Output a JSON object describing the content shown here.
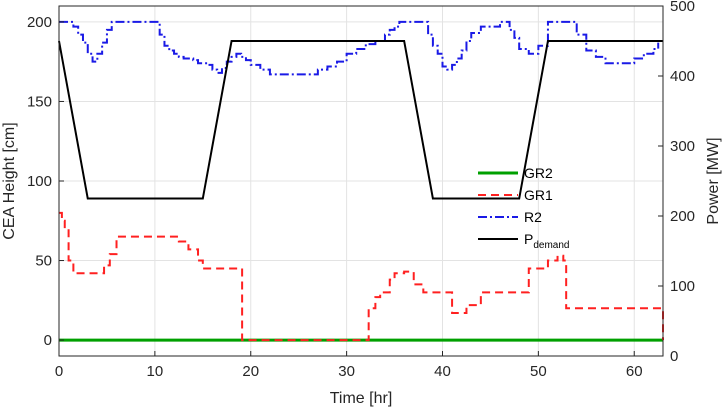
{
  "chart_data": {
    "type": "line",
    "xlabel": "Time [hr]",
    "ylabel_left": "CEA Height [cm]",
    "ylabel_right": "Power [MW]",
    "xlim": [
      0,
      63
    ],
    "ylim_left": [
      -10,
      210
    ],
    "ylim_right": [
      0,
      500
    ],
    "xticks": [
      0,
      10,
      20,
      30,
      40,
      50,
      60
    ],
    "yticks_left": [
      0,
      50,
      100,
      150,
      200
    ],
    "yticks_right": [
      0,
      100,
      200,
      300,
      400,
      500
    ],
    "grid": true,
    "legend_position": "right",
    "series": [
      {
        "name": "GR2",
        "axis": "left",
        "color": "#00a000",
        "style": "solid",
        "step": true,
        "x": [
          0,
          63
        ],
        "y": [
          0,
          0
        ]
      },
      {
        "name": "GR1",
        "axis": "left",
        "color": "#ff2020",
        "style": "dashed",
        "step": true,
        "x": [
          0,
          0.3,
          0.6,
          1,
          1.5,
          4,
          4.7,
          5.3,
          6,
          11.5,
          12.5,
          13.5,
          14.5,
          15,
          18.7,
          19.1,
          31.8,
          32.3,
          33,
          33.5,
          34.5,
          35,
          36,
          37,
          38,
          41,
          42,
          42.5,
          44,
          49,
          50,
          51,
          52,
          52.6,
          52.9,
          63
        ],
        "y": [
          80,
          75,
          70,
          50,
          42,
          42,
          47,
          54,
          65,
          65,
          62,
          57,
          50,
          45,
          45,
          0,
          0,
          20,
          27,
          30,
          38,
          42,
          43,
          35,
          30,
          17,
          17,
          22,
          30,
          45,
          45,
          50,
          53,
          50,
          20,
          0
        ]
      },
      {
        "name": "R2",
        "axis": "left",
        "color": "#1a1ae6",
        "style": "dashdot",
        "step": true,
        "x": [
          0,
          1.5,
          2,
          2.5,
          3,
          3.5,
          4,
          4.5,
          5,
          5.5,
          10,
          10.5,
          11,
          11.5,
          12,
          12.5,
          13,
          14,
          14.5,
          15.5,
          16,
          16.5,
          17,
          17.5,
          18,
          18.5,
          19,
          19.5,
          20,
          21,
          22,
          26,
          27,
          28,
          29,
          30,
          31,
          32,
          33,
          34,
          34.5,
          35,
          35.5,
          36,
          38,
          38.5,
          39,
          39.5,
          40,
          40.5,
          41,
          41.5,
          42,
          42.5,
          43,
          44,
          46,
          47,
          47.5,
          48,
          49,
          50,
          51,
          51.5,
          54,
          55,
          56,
          57,
          59,
          60,
          61,
          62,
          62.5
        ],
        "y": [
          200,
          197,
          192,
          187,
          180,
          175,
          180,
          187,
          195,
          200,
          200,
          192,
          185,
          182,
          180,
          178,
          177,
          176,
          174,
          173,
          170,
          168,
          171,
          175,
          178,
          180,
          178,
          176,
          173,
          170,
          167,
          167,
          170,
          172,
          175,
          180,
          183,
          186,
          188,
          192,
          195,
          197,
          200,
          200,
          200,
          192,
          185,
          180,
          172,
          170,
          173,
          177,
          182,
          188,
          193,
          197,
          200,
          195,
          190,
          183,
          180,
          185,
          200,
          200,
          192,
          182,
          178,
          174,
          174,
          177,
          180,
          183,
          187
        ]
      },
      {
        "name": "P",
        "name_sub": "demand",
        "axis": "right",
        "color": "#000000",
        "style": "solid",
        "step": false,
        "x": [
          0,
          3,
          15,
          18,
          36,
          39,
          48,
          51,
          63
        ],
        "y": [
          450,
          225,
          225,
          450,
          450,
          225,
          225,
          450,
          450
        ]
      }
    ]
  }
}
